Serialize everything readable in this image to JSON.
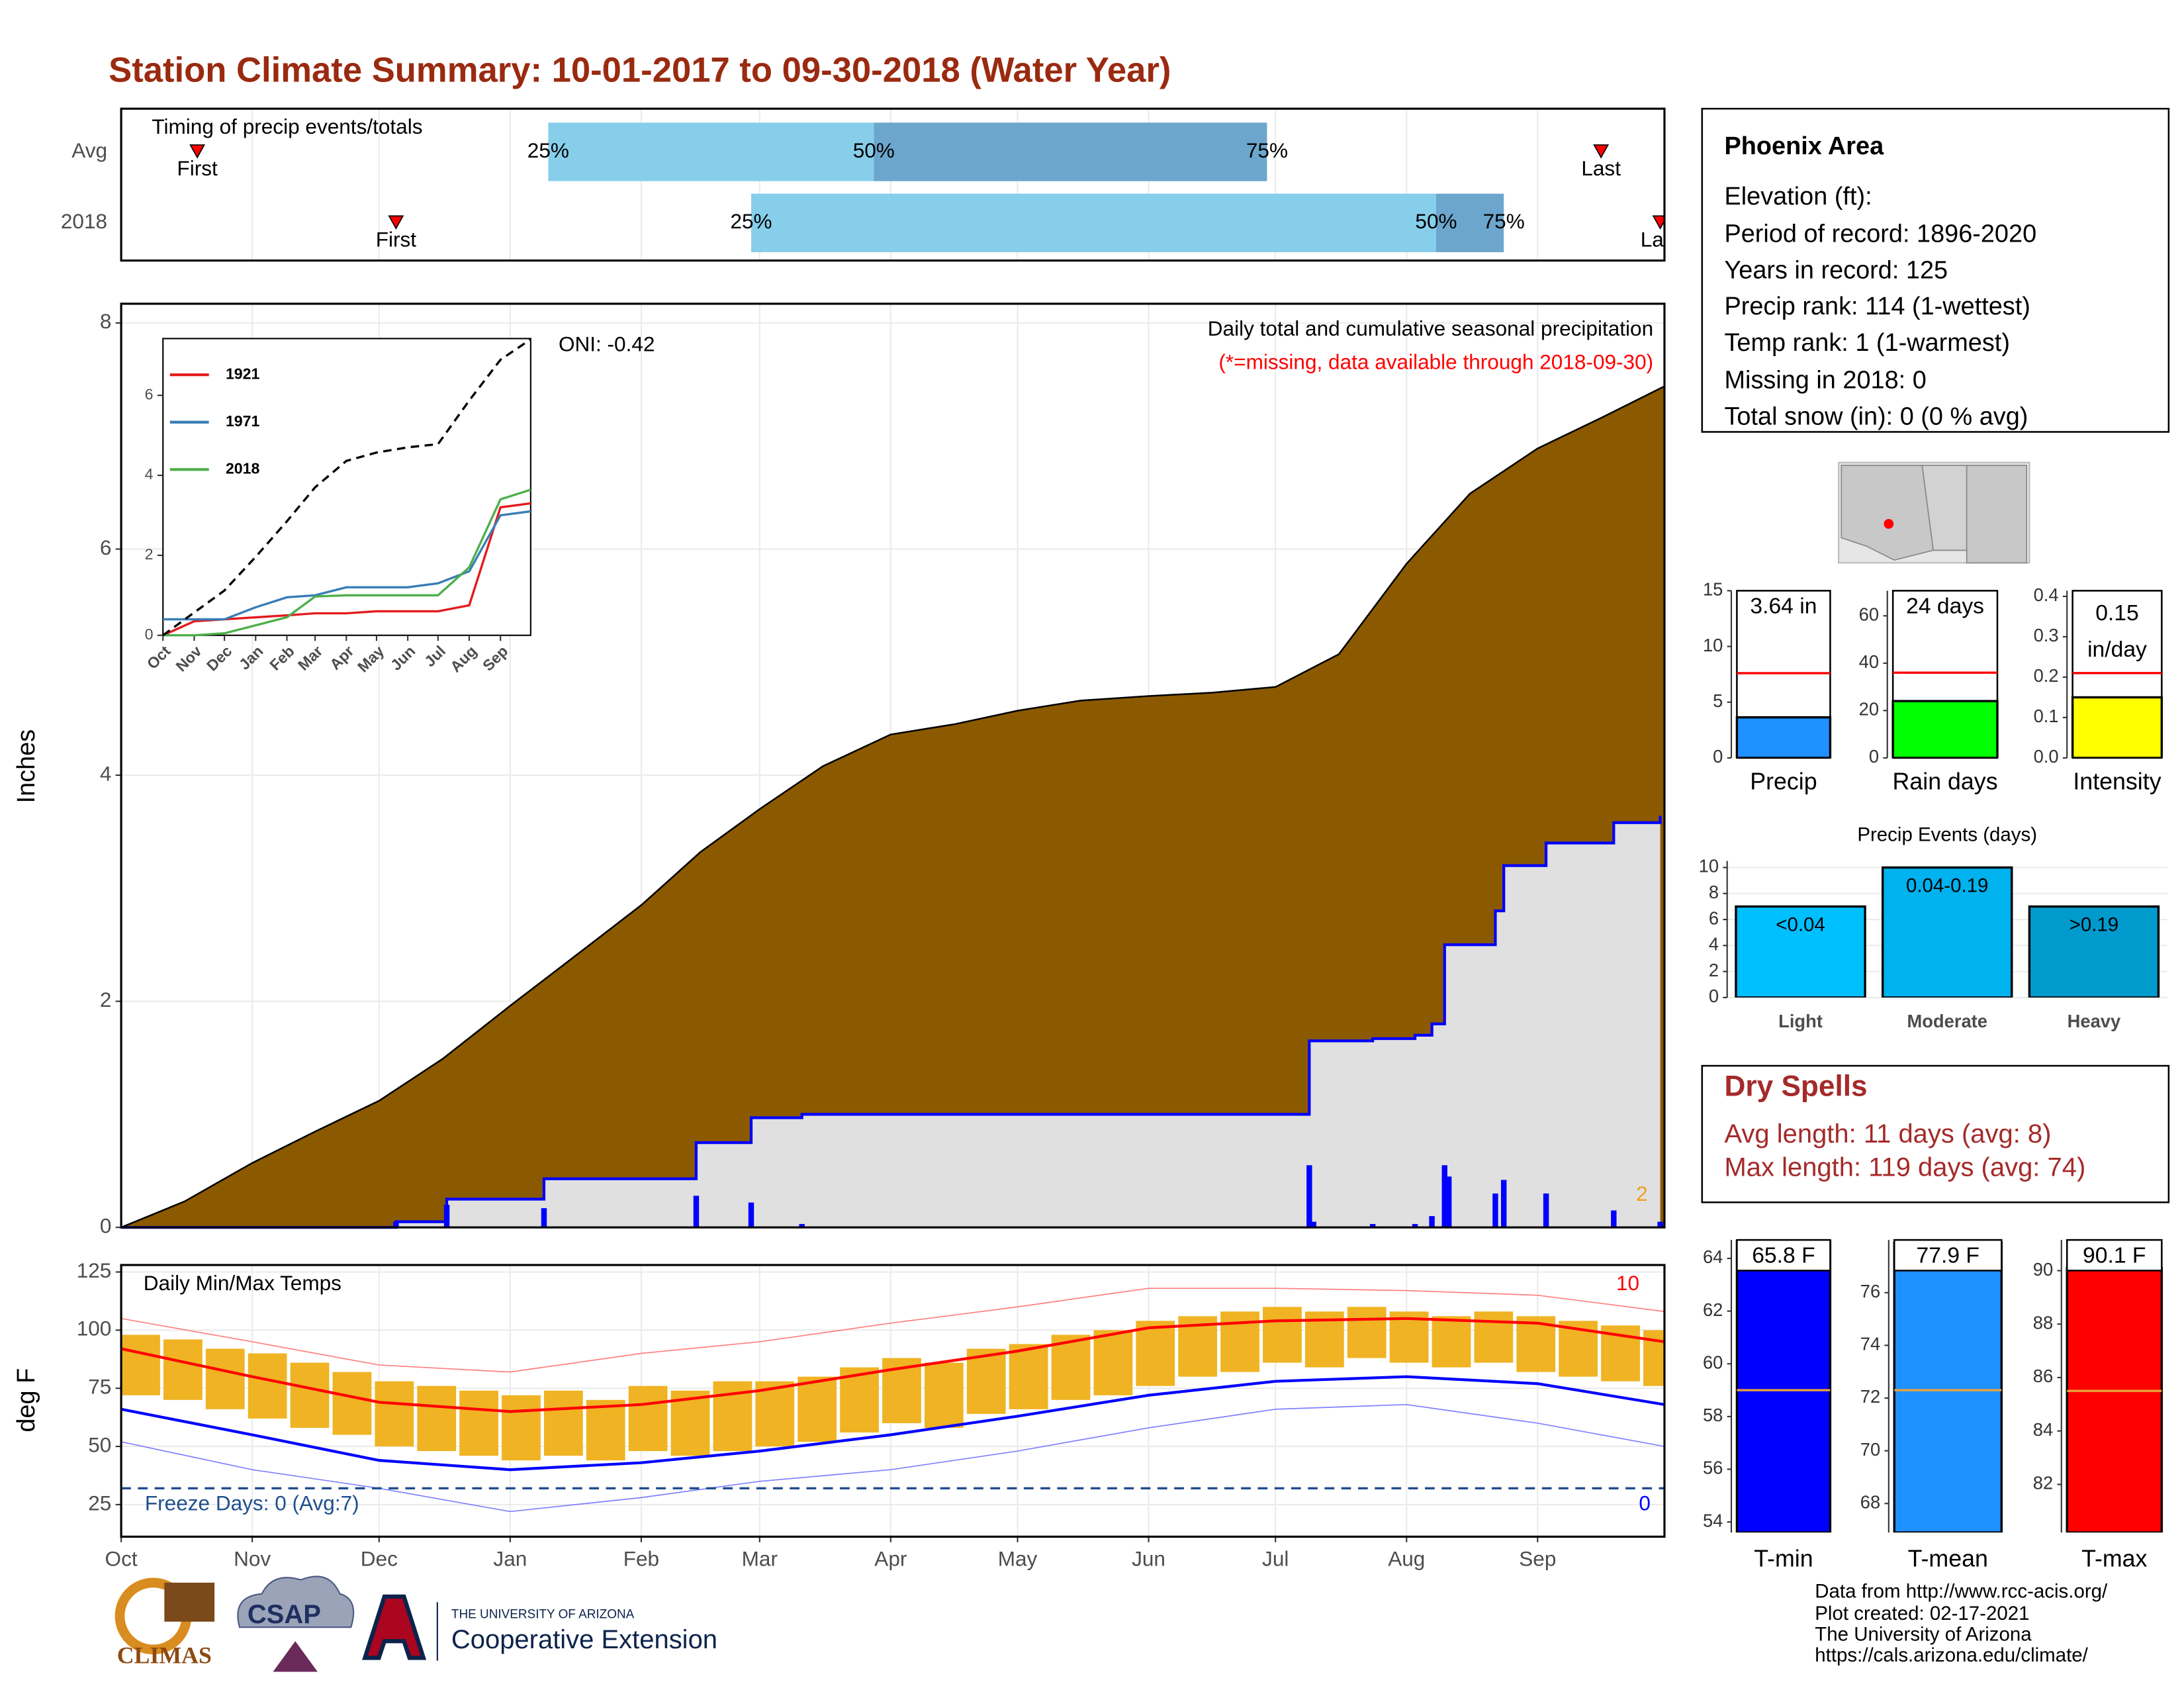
{
  "header": {
    "title": "Station Climate Summary: 10-01-2017 to 09-30-2018 (Water Year)"
  },
  "info": {
    "title": "Phoenix Area",
    "lines": [
      "Elevation (ft):",
      "Period of record: 1896-2020",
      "Years in record: 125",
      "Precip rank: 114 (1-wettest)",
      "Temp rank: 1 (1-warmest)",
      "Missing in 2018: 0",
      "Total snow (in): 0 (0 % avg)"
    ]
  },
  "dry_spells": {
    "title": "Dry Spells",
    "lines": [
      "Avg length: 11 days (avg: 8)",
      "Max length: 119 days (avg: 74)"
    ]
  },
  "footer": {
    "lines": [
      "Data from http://www.rcc-acis.org/",
      "Plot created: 02-17-2021",
      "The University of Arizona",
      "https://cals.arizona.edu/climate/"
    ]
  },
  "logos": {
    "climas": "CLIMAS",
    "csap": "CSAP",
    "university": "THE UNIVERSITY OF ARIZONA",
    "extension": "Cooperative Extension"
  },
  "chart_data": [
    {
      "type": "timing",
      "title": "Timing of precip events/totals",
      "categories": [
        "Avg",
        "2018"
      ],
      "xlim": [
        0,
        365
      ],
      "first": [
        18,
        65
      ],
      "q25": [
        101,
        149
      ],
      "q50": [
        178,
        311
      ],
      "q75": [
        271,
        327
      ],
      "last": [
        350,
        364
      ],
      "first_label": "First",
      "last_label": "Last",
      "quartile_labels": [
        "25%",
        "50%",
        "75%"
      ],
      "colors": [
        "#87ceeb",
        "#6ca6cd"
      ],
      "marker_color": "#ff0000"
    },
    {
      "type": "area",
      "title": "Daily total and cumulative seasonal precipitation",
      "subtitle": "(*=missing, data available through 2018-09-30)",
      "annotation": "ONI: -0.42",
      "corner_note": "2",
      "ylabel": "Inches",
      "xlim": [
        0,
        365
      ],
      "ylim": [
        0,
        8.17
      ],
      "yticks": [
        0,
        2,
        4,
        6,
        8
      ],
      "grid": true,
      "series": [
        {
          "color": "#8b5a00",
          "x": [
            0,
            15,
            31,
            46,
            61,
            76,
            92,
            107,
            123,
            137,
            151,
            166,
            182,
            197,
            212,
            227,
            243,
            258,
            273,
            288,
            304,
            319,
            335,
            350,
            365
          ],
          "values": [
            0,
            0.23,
            0.57,
            0.85,
            1.12,
            1.49,
            1.96,
            2.39,
            2.85,
            3.32,
            3.7,
            4.08,
            4.36,
            4.45,
            4.57,
            4.66,
            4.7,
            4.73,
            4.78,
            5.07,
            5.87,
            6.49,
            6.89,
            7.16,
            7.44
          ]
        },
        {
          "color": "#0000ff",
          "fill": "#e0e0e0",
          "step": true,
          "x": [
            0,
            65,
            77,
            100,
            136,
            149,
            161,
            281,
            296,
            306,
            310,
            313,
            325,
            327,
            337,
            353,
            364
          ],
          "values": [
            0,
            0.05,
            0.25,
            0.43,
            0.75,
            0.97,
            1.0,
            1.65,
            1.67,
            1.7,
            1.8,
            2.5,
            2.8,
            3.2,
            3.4,
            3.58,
            3.64
          ]
        }
      ],
      "bars": {
        "color": "#0000ff",
        "x": [
          65,
          77,
          100,
          136,
          149,
          161,
          281,
          282,
          296,
          306,
          310,
          313,
          314,
          325,
          327,
          337,
          353,
          364
        ],
        "values": [
          0.05,
          0.2,
          0.17,
          0.28,
          0.22,
          0.03,
          0.55,
          0.05,
          0.03,
          0.03,
          0.1,
          0.55,
          0.45,
          0.3,
          0.42,
          0.3,
          0.15,
          0.05
        ]
      }
    },
    {
      "type": "line",
      "x": [
        0,
        31,
        61,
        92,
        123,
        151,
        182,
        212,
        243,
        273,
        304,
        335,
        365
      ],
      "xlim": [
        0,
        365
      ],
      "xticks": [
        {
          "value": 0,
          "label": "Oct"
        },
        {
          "value": 31,
          "label": "Nov"
        },
        {
          "value": 61,
          "label": "Dec"
        },
        {
          "value": 92,
          "label": "Jan"
        },
        {
          "value": 123,
          "label": "Feb"
        },
        {
          "value": 151,
          "label": "Mar"
        },
        {
          "value": 182,
          "label": "Apr"
        },
        {
          "value": 212,
          "label": "May"
        },
        {
          "value": 243,
          "label": "Jun"
        },
        {
          "value": 273,
          "label": "Jul"
        },
        {
          "value": 304,
          "label": "Aug"
        },
        {
          "value": 335,
          "label": "Sep"
        }
      ],
      "ylim": [
        0,
        7.42
      ],
      "yticks": [
        0,
        2,
        4,
        6
      ],
      "series": [
        {
          "name": "1921",
          "color": "#e41a1c",
          "values": [
            0,
            0.35,
            0.4,
            0.45,
            0.5,
            0.55,
            0.55,
            0.6,
            0.6,
            0.6,
            0.75,
            3.2,
            3.3
          ]
        },
        {
          "name": "1971",
          "color": "#377eb8",
          "values": [
            0.4,
            0.4,
            0.4,
            0.7,
            0.95,
            1.0,
            1.2,
            1.2,
            1.2,
            1.3,
            1.6,
            3.0,
            3.1
          ]
        },
        {
          "name": "2018",
          "color": "#4daf4a",
          "values": [
            0,
            0,
            0.05,
            0.25,
            0.45,
            0.97,
            1.0,
            1.0,
            1.0,
            1.0,
            1.7,
            3.4,
            3.64
          ]
        },
        {
          "color": "#000000",
          "dash": true,
          "values": [
            0,
            0.57,
            1.12,
            1.96,
            2.85,
            3.7,
            4.36,
            4.57,
            4.7,
            4.78,
            5.87,
            6.89,
            7.4
          ]
        }
      ]
    },
    {
      "type": "range",
      "title": "Daily Min/Max Temps",
      "ylabel": "deg F",
      "xlim": [
        0,
        365
      ],
      "xticks": [
        {
          "value": 0,
          "label": "Oct"
        },
        {
          "value": 31,
          "label": "Nov"
        },
        {
          "value": 61,
          "label": "Dec"
        },
        {
          "value": 92,
          "label": "Jan"
        },
        {
          "value": 123,
          "label": "Feb"
        },
        {
          "value": 151,
          "label": "Mar"
        },
        {
          "value": 182,
          "label": "Apr"
        },
        {
          "value": 212,
          "label": "May"
        },
        {
          "value": 243,
          "label": "Jun"
        },
        {
          "value": 273,
          "label": "Jul"
        },
        {
          "value": 304,
          "label": "Aug"
        },
        {
          "value": 335,
          "label": "Sep"
        }
      ],
      "ylim": [
        11.2,
        128
      ],
      "yticks": [
        25,
        50,
        75,
        100,
        125
      ],
      "grid": true,
      "bars": {
        "color": "#f0b323",
        "x": [
          0,
          10,
          20,
          30,
          40,
          50,
          60,
          70,
          80,
          90,
          100,
          110,
          120,
          130,
          140,
          150,
          160,
          170,
          180,
          190,
          200,
          210,
          220,
          230,
          240,
          250,
          260,
          270,
          280,
          290,
          300,
          310,
          320,
          330,
          340,
          350,
          360
        ],
        "low": [
          72,
          70,
          66,
          62,
          58,
          55,
          50,
          48,
          46,
          44,
          46,
          44,
          48,
          46,
          48,
          50,
          52,
          56,
          60,
          58,
          64,
          66,
          70,
          72,
          76,
          80,
          82,
          86,
          84,
          88,
          86,
          84,
          86,
          82,
          80,
          78,
          76
        ],
        "high": [
          98,
          96,
          92,
          90,
          86,
          82,
          78,
          76,
          74,
          72,
          74,
          70,
          76,
          74,
          78,
          78,
          80,
          84,
          88,
          86,
          92,
          94,
          98,
          100,
          104,
          106,
          108,
          110,
          108,
          110,
          108,
          106,
          108,
          106,
          104,
          102,
          100
        ]
      },
      "series": [
        {
          "color": "#ff8080",
          "width": 0.8,
          "x": [
            0,
            31,
            61,
            92,
            123,
            151,
            182,
            212,
            243,
            273,
            304,
            335,
            365
          ],
          "values": [
            105,
            95,
            85,
            82,
            90,
            95,
            103,
            110,
            118,
            118,
            117,
            115,
            108
          ]
        },
        {
          "color": "#8080ff",
          "width": 0.8,
          "x": [
            0,
            31,
            61,
            92,
            123,
            151,
            182,
            212,
            243,
            273,
            304,
            335,
            365
          ],
          "values": [
            52,
            40,
            32,
            22,
            28,
            35,
            40,
            48,
            58,
            66,
            68,
            60,
            50
          ]
        },
        {
          "color": "#ff0000",
          "width": 2,
          "x": [
            0,
            31,
            61,
            92,
            123,
            151,
            182,
            212,
            243,
            273,
            304,
            335,
            365
          ],
          "values": [
            92,
            80,
            69,
            65,
            68,
            74,
            83,
            91,
            101,
            104,
            105,
            103,
            95
          ]
        },
        {
          "color": "#0000ff",
          "width": 2,
          "x": [
            0,
            31,
            61,
            92,
            123,
            151,
            182,
            212,
            243,
            273,
            304,
            335,
            365
          ],
          "values": [
            66,
            55,
            44,
            40,
            43,
            48,
            55,
            63,
            72,
            78,
            80,
            77,
            68
          ]
        }
      ],
      "freeze_line": 32,
      "freeze_color": "#1f4e8c",
      "freeze_label": "Freeze Days: 0 (Avg:7)",
      "max_count": 10,
      "min_count": 0
    },
    {
      "type": "bar",
      "categories": [
        "Precip"
      ],
      "values": [
        3.64
      ],
      "value_labels": [
        "3.64 in"
      ],
      "color": "#1e90ff",
      "avg": 7.6,
      "avg_color": "#ff0000",
      "ylim": [
        0,
        15
      ],
      "yticks": [
        0,
        5,
        10,
        15
      ]
    },
    {
      "type": "bar",
      "categories": [
        "Rain days"
      ],
      "values": [
        24
      ],
      "value_labels": [
        "24 days"
      ],
      "color": "#00ff00",
      "avg": 36,
      "avg_color": "#ff0000",
      "ylim": [
        0,
        70.6
      ],
      "yticks": [
        0,
        20,
        40,
        60
      ]
    },
    {
      "type": "bar",
      "categories": [
        "Intensity"
      ],
      "values": [
        0.15
      ],
      "value_labels": [
        "0.15 in/day"
      ],
      "color": "#ffff00",
      "avg": 0.21,
      "avg_color": "#ff0000",
      "ylim": [
        0,
        0.414
      ],
      "yticks": [
        {
          "value": 0,
          "label": "0.0"
        },
        0.1,
        0.2,
        0.3,
        0.4
      ]
    },
    {
      "type": "bar",
      "title": "Precip Events (days)",
      "categories": [
        "Light",
        "Moderate",
        "Heavy"
      ],
      "values": [
        7,
        10,
        7
      ],
      "bar_labels": [
        "<0.04",
        "0.04-0.19",
        ">0.19"
      ],
      "colors": [
        "#00bfff",
        "#00b2ee",
        "#009acd"
      ],
      "ylim": [
        0,
        10.5
      ],
      "yticks": [
        0,
        2,
        4,
        6,
        8,
        10
      ],
      "grid": true
    },
    {
      "type": "bar",
      "categories": [
        "T-min"
      ],
      "values": [
        65.8
      ],
      "value_labels": [
        "65.8 F"
      ],
      "color": "#0000ff",
      "avg": 59.0,
      "avg_color": "#e8a33a",
      "ylim": [
        53.6,
        64.7
      ],
      "yticks": [
        54,
        56,
        58,
        60,
        62,
        64
      ]
    },
    {
      "type": "bar",
      "categories": [
        "T-mean"
      ],
      "values": [
        77.9
      ],
      "value_labels": [
        "77.9 F"
      ],
      "color": "#1e90ff",
      "avg": 72.3,
      "avg_color": "#e8a33a",
      "ylim": [
        66.9,
        78.0
      ],
      "yticks": [
        68,
        70,
        72,
        74,
        76
      ]
    },
    {
      "type": "bar",
      "categories": [
        "T-max"
      ],
      "values": [
        90.1
      ],
      "value_labels": [
        "90.1 F"
      ],
      "color": "#ff0000",
      "avg": 85.5,
      "avg_color": "#e8a33a",
      "ylim": [
        80.2,
        91.15
      ],
      "yticks": [
        82,
        84,
        86,
        88,
        90
      ]
    }
  ]
}
